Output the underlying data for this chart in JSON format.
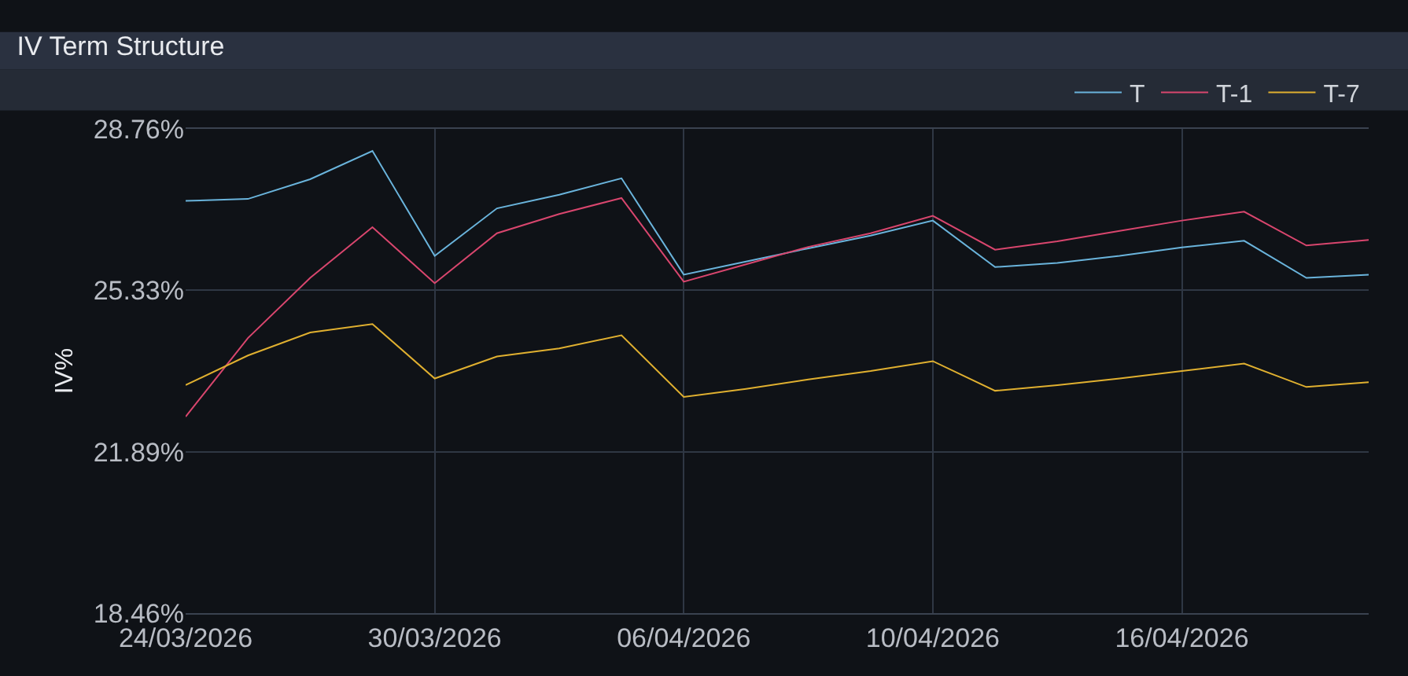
{
  "chart_data": {
    "type": "line",
    "title": "IV Term Structure",
    "ylabel": "IV%",
    "categories": [
      "24/03/2026",
      null,
      null,
      null,
      "30/03/2026",
      null,
      null,
      null,
      "06/04/2026",
      null,
      null,
      null,
      "10/04/2026",
      null,
      null,
      null,
      "16/04/2026",
      null,
      null,
      null
    ],
    "series": [
      {
        "name": "T",
        "color": "#6ab4dc",
        "values": [
          27.23,
          27.27,
          27.69,
          28.29,
          26.06,
          27.07,
          27.36,
          27.71,
          25.66,
          25.94,
          26.22,
          26.49,
          26.81,
          25.82,
          25.91,
          26.06,
          26.24,
          26.38,
          25.59,
          25.66
        ]
      },
      {
        "name": "T-1",
        "color": "#d9466e",
        "values": [
          22.64,
          24.31,
          25.59,
          26.67,
          25.48,
          26.54,
          26.95,
          27.29,
          25.51,
          25.88,
          26.25,
          26.54,
          26.91,
          26.19,
          26.37,
          26.59,
          26.81,
          27.0,
          26.28,
          26.4
        ]
      },
      {
        "name": "T-7",
        "color": "#e0b030",
        "values": [
          23.31,
          23.94,
          24.43,
          24.61,
          23.45,
          23.92,
          24.09,
          24.37,
          23.06,
          23.23,
          23.43,
          23.61,
          23.82,
          23.19,
          23.31,
          23.45,
          23.61,
          23.77,
          23.27,
          23.37
        ]
      }
    ],
    "ylim": [
      18.46,
      28.76
    ],
    "yticks": [
      {
        "value": 18.46,
        "label": "18.46%"
      },
      {
        "value": 21.89,
        "label": "21.89%"
      },
      {
        "value": 25.33,
        "label": "25.33%"
      },
      {
        "value": 28.76,
        "label": "28.76%"
      }
    ],
    "grid": true,
    "legend": "top right",
    "marker": "none",
    "line_style": "solid"
  }
}
